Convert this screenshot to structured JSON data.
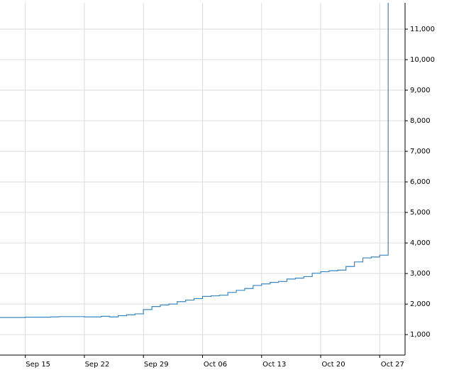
{
  "chart_data": {
    "type": "line",
    "x": [
      "Sep 12",
      "Sep 13",
      "Sep 14",
      "Sep 15",
      "Sep 16",
      "Sep 17",
      "Sep 18",
      "Sep 19",
      "Sep 20",
      "Sep 21",
      "Sep 22",
      "Sep 23",
      "Sep 24",
      "Sep 25",
      "Sep 26",
      "Sep 27",
      "Sep 28",
      "Sep 29",
      "Sep 30",
      "Oct 01",
      "Oct 02",
      "Oct 03",
      "Oct 04",
      "Oct 05",
      "Oct 06",
      "Oct 07",
      "Oct 08",
      "Oct 09",
      "Oct 10",
      "Oct 11",
      "Oct 12",
      "Oct 13",
      "Oct 14",
      "Oct 15",
      "Oct 16",
      "Oct 17",
      "Oct 18",
      "Oct 19",
      "Oct 20",
      "Oct 21",
      "Oct 22",
      "Oct 23",
      "Oct 24",
      "Oct 25",
      "Oct 26",
      "Oct 27",
      "Oct 28"
    ],
    "series": [
      {
        "color": "#3a87c0",
        "values": [
          1560,
          1560,
          1560,
          1570,
          1570,
          1570,
          1580,
          1590,
          1590,
          1590,
          1580,
          1580,
          1600,
          1580,
          1620,
          1650,
          1680,
          1820,
          1920,
          1970,
          2000,
          2080,
          2130,
          2180,
          2250,
          2270,
          2290,
          2380,
          2450,
          2510,
          2610,
          2660,
          2710,
          2740,
          2820,
          2850,
          2900,
          3010,
          3060,
          3090,
          3110,
          3230,
          3380,
          3510,
          3540,
          3600,
          12000
        ]
      }
    ],
    "xlim": [
      "Sep 12",
      "Oct 30"
    ],
    "xticks": [
      "Sep 15",
      "Sep 22",
      "Sep 29",
      "Oct 06",
      "Oct 13",
      "Oct 20",
      "Oct 27"
    ],
    "ylim": [
      330,
      11860
    ],
    "yticks": [
      {
        "value": 1000,
        "label": "1,000"
      },
      {
        "value": 2000,
        "label": "2,000"
      },
      {
        "value": 3000,
        "label": "3,000"
      },
      {
        "value": 4000,
        "label": "4,000"
      },
      {
        "value": 5000,
        "label": "5,000"
      },
      {
        "value": 6000,
        "label": "6,000"
      },
      {
        "value": 7000,
        "label": "7,000"
      },
      {
        "value": 8000,
        "label": "8,000"
      },
      {
        "value": 9000,
        "label": "9,000"
      },
      {
        "value": 10000,
        "label": "10,000"
      },
      {
        "value": 11000,
        "label": "11,000"
      }
    ],
    "y_axis_side": "right",
    "step": true,
    "grid": true
  }
}
